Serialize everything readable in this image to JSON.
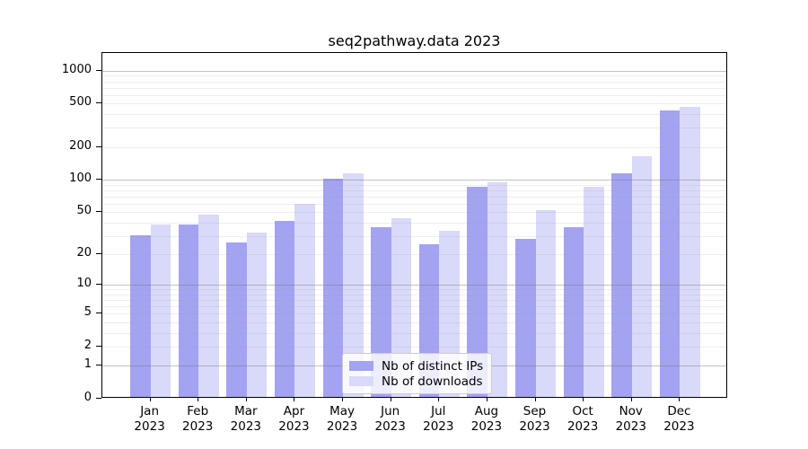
{
  "title": "seq2pathway.data 2023",
  "legend": {
    "items": [
      {
        "label": "Nb of distinct IPs",
        "color": "#a3a3f2"
      },
      {
        "label": "Nb of downloads",
        "color": "#d9d9f9"
      }
    ]
  },
  "chart_data": {
    "type": "bar",
    "title": "seq2pathway.data 2023",
    "categories": [
      "Jan",
      "Feb",
      "Mar",
      "Apr",
      "May",
      "Jun",
      "Jul",
      "Aug",
      "Sep",
      "Oct",
      "Nov",
      "Dec"
    ],
    "year_label": "2023",
    "series": [
      {
        "name": "Nb of distinct IPs",
        "color": "#a3a3f2",
        "values": [
          29,
          37,
          25,
          40,
          99,
          35,
          24,
          82,
          27,
          35,
          110,
          414
        ]
      },
      {
        "name": "Nb of downloads",
        "color": "#d9d9f9",
        "values": [
          37,
          46,
          31,
          58,
          111,
          42,
          32,
          91,
          50,
          83,
          158,
          451
        ]
      }
    ],
    "y_axis": {
      "scale": "log1p",
      "tick_values": [
        0,
        1,
        2,
        5,
        10,
        20,
        50,
        100,
        200,
        500,
        1000
      ],
      "tick_labels": [
        "0",
        "1",
        "2",
        "5",
        "10",
        "20",
        "50",
        "100",
        "200",
        "500",
        "1000"
      ],
      "top_value": 1470
    },
    "gridlines": {
      "major": [
        1,
        10,
        100,
        1000
      ],
      "minor": [
        2,
        3,
        4,
        5,
        6,
        7,
        8,
        9,
        20,
        30,
        40,
        50,
        60,
        70,
        80,
        90,
        200,
        300,
        400,
        500,
        600,
        700,
        800,
        900
      ]
    },
    "legend_position": "lower-center"
  }
}
